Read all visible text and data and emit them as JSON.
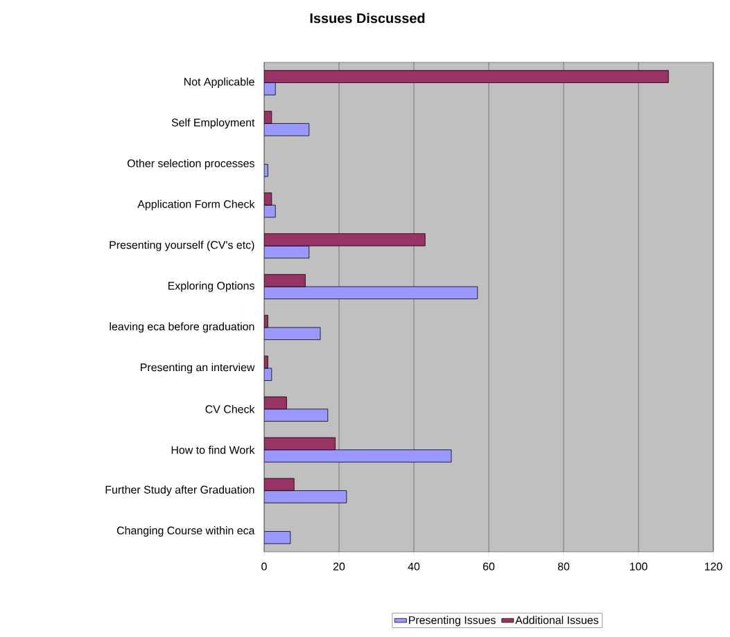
{
  "chart_data": {
    "type": "bar",
    "orientation": "horizontal",
    "title": "Issues Discussed",
    "categories": [
      "Not Applicable",
      "Self Employment",
      "Other selection processes",
      "Application Form Check",
      "Presenting yourself (CV's etc)",
      "Exploring Options",
      "leaving eca before graduation",
      "Presenting an interview",
      "CV Check",
      "How to find Work",
      "Further Study after Graduation",
      "Changing Course within eca"
    ],
    "series": [
      {
        "name": "Presenting Issues",
        "color": "#9999ff",
        "values": [
          3,
          12,
          1,
          3,
          12,
          57,
          15,
          2,
          17,
          50,
          22,
          7
        ]
      },
      {
        "name": "Additional Issues",
        "color": "#993366",
        "values": [
          108,
          2,
          null,
          2,
          43,
          11,
          1,
          1,
          6,
          19,
          8,
          null
        ]
      }
    ],
    "xlim": [
      0,
      120
    ],
    "xticks": [
      0,
      20,
      40,
      60,
      80,
      100,
      120
    ],
    "grid": "x",
    "legend": "bottom"
  }
}
